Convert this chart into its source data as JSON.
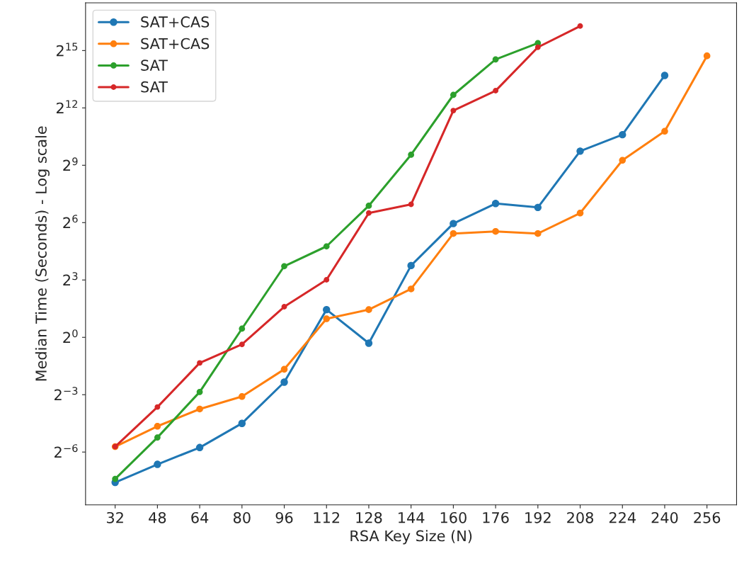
{
  "chart_data": {
    "type": "line",
    "xlabel": "RSA Key Size (N)",
    "ylabel": "Median Time (Seconds) - Log scale",
    "categories": [
      "32",
      "48",
      "64",
      "80",
      "96",
      "112",
      "128",
      "144",
      "160",
      "176",
      "192",
      "208",
      "224",
      "240",
      "256"
    ],
    "series": [
      {
        "name": "SAT+CAS",
        "color": "#1f77b4",
        "values": [
          0.0052,
          0.01,
          0.0184,
          0.0442,
          0.197,
          2.73,
          0.81,
          13.5,
          61.8,
          128,
          111,
          855,
          1552,
          13300,
          null
        ]
      },
      {
        "name": "SAT+CAS",
        "color": "#ff7f0e",
        "values": [
          0.019,
          0.0398,
          0.0743,
          0.117,
          0.314,
          1.96,
          2.73,
          5.78,
          43.1,
          46.5,
          43.1,
          90.5,
          613,
          1758,
          27000
        ]
      },
      {
        "name": "SAT",
        "color": "#2ca02c",
        "values": [
          0.0059,
          0.0265,
          0.138,
          1.37,
          13.2,
          27.1,
          118,
          750,
          6560,
          23800,
          42900,
          null,
          null,
          null,
          null
        ]
      },
      {
        "name": "SAT",
        "color": "#d62728",
        "values": [
          0.019,
          0.08,
          0.395,
          0.774,
          3.03,
          8.06,
          90.5,
          124,
          3720,
          7640,
          36900,
          79600,
          null,
          null,
          null
        ]
      }
    ],
    "log": "y",
    "ylim": [
      0.0023,
      185000
    ],
    "yticks": [
      {
        "value": 0.015625,
        "label": "2$^{−6}$"
      },
      {
        "value": 0.125,
        "label": "2$^{−3}$"
      },
      {
        "value": 1,
        "label": "2$^{0}$"
      },
      {
        "value": 8,
        "label": "2$^{3}$"
      },
      {
        "value": 64,
        "label": "2$^{6}$"
      },
      {
        "value": 512,
        "label": "2$^{9}$"
      },
      {
        "value": 4096,
        "label": "2$^{12}$"
      },
      {
        "value": 32768,
        "label": "2$^{15}$"
      }
    ],
    "marker": "circle",
    "line_style": "solid",
    "grid": false,
    "legend": "top left"
  }
}
